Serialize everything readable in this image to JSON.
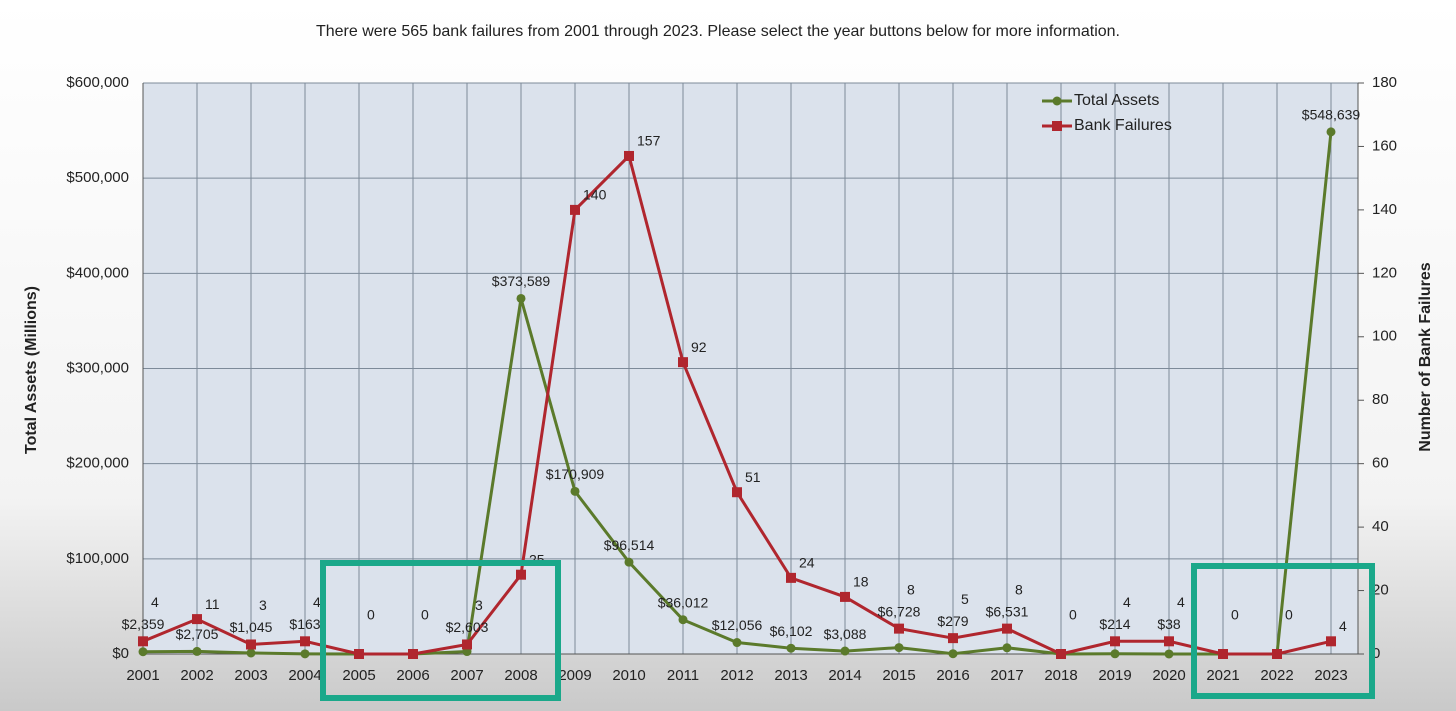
{
  "chart_data": {
    "type": "line",
    "title": "There were 565 bank failures from 2001 through 2023. Please select the year buttons below for more information.",
    "ylabel": "Total Assets (Millions)",
    "y2label": "Number of Bank Failures",
    "categories": [
      "2001",
      "2002",
      "2003",
      "2004",
      "2005",
      "2006",
      "2007",
      "2008",
      "2009",
      "2010",
      "2011",
      "2012",
      "2013",
      "2014",
      "2015",
      "2016",
      "2017",
      "2018",
      "2019",
      "2020",
      "2021",
      "2022",
      "2023"
    ],
    "series": [
      {
        "name": "Total Assets",
        "color": "#5b7a2b",
        "values": [
          2359,
          2705,
          1045,
          163,
          0,
          0,
          2603,
          373589,
          170909,
          96514,
          36012,
          12056,
          6102,
          3088,
          6728,
          279,
          6531,
          0,
          214,
          38,
          0,
          0,
          548639
        ],
        "value_labels": [
          "$2,359",
          "$2,705",
          "$1,045",
          "$163",
          null,
          null,
          "$2,603",
          "$373,589",
          "$170,909",
          "$96,514",
          "$36,012",
          "$12,056",
          "$6,102",
          "$3,088",
          "$6,728",
          "$279",
          "$6,531",
          null,
          "$214",
          "$38",
          null,
          null,
          "$548,639"
        ]
      },
      {
        "name": "Bank Failures",
        "color": "#b0262e",
        "axis": "y2",
        "values": [
          4,
          11,
          3,
          4,
          0,
          0,
          3,
          25,
          140,
          157,
          92,
          51,
          24,
          18,
          8,
          5,
          8,
          0,
          4,
          4,
          0,
          0,
          4
        ]
      }
    ],
    "ylim": [
      0,
      600000
    ],
    "yticks": [
      {
        "value": 0,
        "label": "$0"
      },
      {
        "value": 100000,
        "label": "$100,000"
      },
      {
        "value": 200000,
        "label": "$200,000"
      },
      {
        "value": 300000,
        "label": "$300,000"
      },
      {
        "value": 400000,
        "label": "$400,000"
      },
      {
        "value": 500000,
        "label": "$500,000"
      },
      {
        "value": 600000,
        "label": "$600,000"
      }
    ],
    "y2lim": [
      0,
      180
    ],
    "y2ticks": [
      0,
      20,
      40,
      60,
      80,
      100,
      120,
      140,
      160,
      180
    ],
    "grid": true,
    "legend": "top-right"
  }
}
